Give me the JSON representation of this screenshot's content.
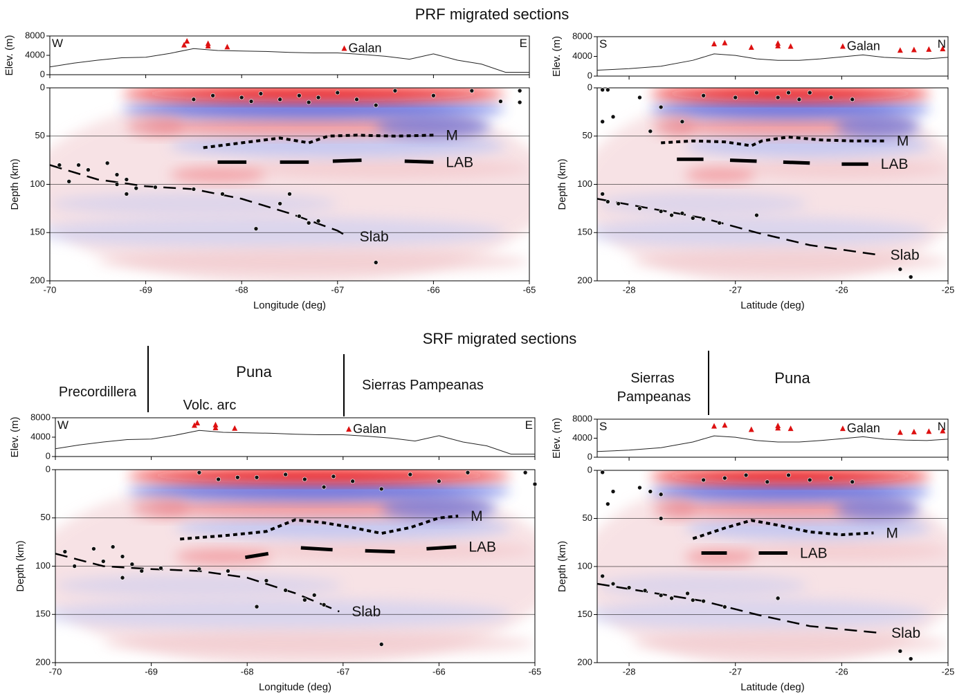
{
  "titles": [
    "PRF migrated sections",
    "SRF migrated sections"
  ],
  "regions": {
    "left": [
      "Precordillera",
      "Puna",
      "Volc. arc",
      "Sierras Pampeanas"
    ],
    "right": {
      "sierras": [
        "Sierras",
        "Pampeanas"
      ],
      "puna": "Puna"
    }
  },
  "chart_data": [
    {
      "type": "section",
      "xlabel": "Longitude (deg)",
      "xlim": [
        -70,
        -65
      ],
      "xticks": [
        -70,
        -69,
        -68,
        -67,
        -66,
        -65
      ],
      "elevation": {
        "ylabel": "Elev. (m)",
        "ylim": [
          0,
          8000
        ],
        "yticks": [
          0,
          4000,
          8000
        ],
        "ends": [
          "W",
          "E"
        ],
        "color": "#222222",
        "x": [
          -70,
          -69.75,
          -69.5,
          -69.25,
          -69,
          -68.75,
          -68.5,
          -68.25,
          -68,
          -67.75,
          -67.5,
          -67.25,
          -67,
          -66.75,
          -66.5,
          -66.25,
          -66,
          -65.75,
          -65.5,
          -65.25,
          -65
        ],
        "values": [
          1600,
          2400,
          3000,
          3500,
          3600,
          4400,
          5400,
          5000,
          4900,
          4800,
          4600,
          4500,
          4500,
          4200,
          3800,
          3200,
          4300,
          3000,
          2200,
          500,
          500
        ],
        "volcanoes": {
          "color": "#dd1111",
          "x": [
            -68.6,
            -68.57,
            -68.35,
            -68.35,
            -68.15,
            -66.93
          ],
          "values": [
            6200,
            7000,
            6500,
            6000,
            5800,
            5500
          ],
          "labels": [
            null,
            null,
            null,
            null,
            null,
            "Galan"
          ]
        }
      },
      "depth": {
        "ylabel": "Depth (km)",
        "ylim": [
          0,
          200
        ],
        "inverted": true,
        "yticks": [
          0,
          50,
          100,
          150,
          200
        ],
        "grid": true,
        "earthquakes": {
          "color": "#111111",
          "x": [
            -69.9,
            -69.7,
            -69.6,
            -69.4,
            -69.8,
            -69.3,
            -69.2,
            -69.3,
            -69.1,
            -69.2,
            -68.9,
            -68.5,
            -68.2,
            -67.6,
            -67.4,
            -67.3,
            -67.2,
            -67.85,
            -67.5,
            -66.6,
            -68.5,
            -68.3,
            -68.0,
            -67.8,
            -67.6,
            -67.4,
            -67.2,
            -67.0,
            -66.8,
            -66.6,
            -66.4,
            -66.0,
            -65.6,
            -65.1,
            -65.1,
            -65.3,
            -67.3,
            -67.9
          ],
          "values": [
            80,
            80,
            85,
            78,
            97,
            90,
            95,
            100,
            104,
            110,
            103,
            105,
            110,
            120,
            133,
            140,
            138,
            146,
            110,
            181,
            12,
            8,
            10,
            6,
            12,
            8,
            10,
            5,
            12,
            18,
            3,
            8,
            3,
            3,
            15,
            14,
            15,
            14
          ]
        },
        "series": [
          {
            "name": "M",
            "style": "dotted",
            "color": "#000000",
            "x": [
              -68.4,
              -68,
              -67.6,
              -67.3,
              -67.1,
              -66.8,
              -66.4,
              -66
            ],
            "values": [
              62,
              57,
              52,
              57,
              50,
              49,
              50,
              49
            ]
          },
          {
            "name": "LAB",
            "style": "thick",
            "color": "#000000",
            "x": [
              -68.25,
              -67.95,
              -67.8,
              -67.6,
              -67.3,
              -67.2,
              -67.05,
              -66.75,
              -66.6,
              -66.3,
              -66.0
            ],
            "values": [
              77,
              77,
              null,
              77,
              77,
              null,
              76,
              75,
              null,
              76,
              77
            ]
          },
          {
            "name": "Slab",
            "style": "dashed",
            "color": "#000000",
            "x": [
              -70,
              -69.5,
              -69,
              -68.5,
              -68,
              -67.5,
              -67,
              -66.9
            ],
            "values": [
              80,
              95,
              102,
              105,
              115,
              130,
              148,
              154
            ]
          }
        ]
      }
    },
    {
      "type": "section",
      "xlabel": "Latitude (deg)",
      "xlim": [
        -28.3,
        -25
      ],
      "xticks": [
        -28,
        -27,
        -26,
        -25
      ],
      "elevation": {
        "ylabel": "Elev. (m)",
        "ylim": [
          0,
          8000
        ],
        "yticks": [
          0,
          4000,
          8000
        ],
        "ends": [
          "S",
          "N"
        ],
        "color": "#222222",
        "x": [
          -28.3,
          -28,
          -27.7,
          -27.4,
          -27.2,
          -27,
          -26.8,
          -26.6,
          -26.4,
          -26.2,
          -26,
          -25.8,
          -25.6,
          -25.4,
          -25.2,
          -25
        ],
        "values": [
          1200,
          1500,
          2000,
          3200,
          4500,
          4200,
          3500,
          3200,
          3200,
          3500,
          3900,
          4300,
          3800,
          3600,
          3500,
          3800
        ],
        "volcanoes": {
          "color": "#dd1111",
          "x": [
            -27.2,
            -27.1,
            -26.85,
            -26.6,
            -26.6,
            -26.48,
            -25.99,
            -25.45,
            -25.32,
            -25.18,
            -25.05
          ],
          "values": [
            6600,
            6800,
            5900,
            6700,
            6200,
            6100,
            6100,
            5300,
            5400,
            5500,
            5600
          ],
          "labels": [
            null,
            null,
            null,
            null,
            null,
            null,
            "Galan",
            null,
            null,
            null,
            null
          ]
        }
      },
      "depth": {
        "ylabel": "Depth (km)",
        "ylim": [
          0,
          200
        ],
        "inverted": true,
        "yticks": [
          0,
          50,
          100,
          150,
          200
        ],
        "grid": true,
        "earthquakes": {
          "color": "#111111",
          "x": [
            -28.25,
            -28.2,
            -28.25,
            -28.15,
            -27.9,
            -27.7,
            -27.3,
            -27.0,
            -26.8,
            -26.6,
            -26.5,
            -26.4,
            -26.3,
            -26.1,
            -25.9,
            -27.5,
            -28.25,
            -28.2,
            -28.1,
            -27.9,
            -27.7,
            -27.6,
            -27.5,
            -27.4,
            -27.3,
            -27.15,
            -26.8,
            -25.45,
            -25.35,
            -27.8
          ],
          "values": [
            2,
            2,
            35,
            30,
            10,
            20,
            8,
            10,
            5,
            10,
            5,
            12,
            5,
            10,
            12,
            35,
            110,
            118,
            120,
            125,
            128,
            132,
            130,
            135,
            136,
            140,
            132,
            188,
            196,
            45
          ]
        },
        "series": [
          {
            "name": "M",
            "style": "dotted",
            "color": "#000000",
            "x": [
              -27.7,
              -27.4,
              -27.1,
              -26.85,
              -26.75,
              -26.5,
              -26.2,
              -25.9,
              -25.6
            ],
            "values": [
              57,
              55,
              56,
              60,
              55,
              51,
              54,
              55,
              55
            ]
          },
          {
            "name": "LAB",
            "style": "thick",
            "color": "#000000",
            "x": [
              -27.55,
              -27.3,
              -27.2,
              -27.05,
              -26.8,
              -26.7,
              -26.55,
              -26.3,
              -26.2,
              -26,
              -25.75
            ],
            "values": [
              74,
              74,
              null,
              75,
              76,
              null,
              77,
              78,
              null,
              79,
              79
            ]
          },
          {
            "name": "Slab",
            "style": "dashed",
            "color": "#000000",
            "x": [
              -28.3,
              -27.8,
              -27.3,
              -26.8,
              -26.3,
              -25.66
            ],
            "values": [
              115,
              125,
              135,
              150,
              163,
              173
            ]
          }
        ]
      }
    },
    {
      "type": "section",
      "xlabel": "Longitude (deg)",
      "xlim": [
        -70,
        -65
      ],
      "xticks": [
        -70,
        -69,
        -68,
        -67,
        -66,
        -65
      ],
      "elevation": {
        "ylabel": "Elev. (m)",
        "ylim": [
          0,
          8000
        ],
        "yticks": [
          0,
          4000,
          8000
        ],
        "ends": [
          "W",
          "E"
        ],
        "color": "#222222",
        "x": [
          -70,
          -69.75,
          -69.5,
          -69.25,
          -69,
          -68.75,
          -68.5,
          -68.25,
          -68,
          -67.75,
          -67.5,
          -67.25,
          -67,
          -66.75,
          -66.5,
          -66.25,
          -66,
          -65.75,
          -65.5,
          -65.25,
          -65
        ],
        "values": [
          1600,
          2400,
          3000,
          3500,
          3600,
          4400,
          5400,
          5000,
          4900,
          4800,
          4600,
          4500,
          4500,
          4200,
          3800,
          3200,
          4300,
          3000,
          2200,
          500,
          500
        ],
        "volcanoes": {
          "color": "#dd1111",
          "x": [
            -68.55,
            -68.52,
            -68.33,
            -68.33,
            -68.13,
            -66.94
          ],
          "values": [
            6500,
            7000,
            6600,
            6000,
            5900,
            5700
          ],
          "labels": [
            null,
            null,
            null,
            null,
            null,
            "Galan"
          ]
        }
      },
      "depth": {
        "ylabel": "Depth (km)",
        "ylim": [
          0,
          200
        ],
        "inverted": true,
        "yticks": [
          0,
          50,
          100,
          150,
          200
        ],
        "grid": true,
        "earthquakes": {
          "color": "#111111",
          "x": [
            -69.9,
            -69.6,
            -69.5,
            -69.3,
            -69.4,
            -69.8,
            -69.2,
            -69.1,
            -69.3,
            -68.9,
            -68.5,
            -68.2,
            -67.8,
            -67.6,
            -67.4,
            -67.2,
            -67.3,
            -67.9,
            -66.6,
            -68.5,
            -68.3,
            -67.9,
            -67.6,
            -67.4,
            -67.1,
            -66.9,
            -66.6,
            -66.3,
            -66.0,
            -65.7,
            -65.1,
            -65.0,
            -67.2,
            -68.1
          ],
          "values": [
            85,
            82,
            95,
            90,
            80,
            100,
            98,
            105,
            112,
            102,
            103,
            105,
            115,
            125,
            135,
            140,
            130,
            142,
            181,
            3,
            10,
            8,
            5,
            10,
            7,
            12,
            20,
            5,
            12,
            3,
            3,
            15,
            18,
            8
          ]
        },
        "series": [
          {
            "name": "M",
            "style": "dotted",
            "color": "#000000",
            "x": [
              -68.7,
              -68.2,
              -67.8,
              -67.5,
              -67.2,
              -66.9,
              -66.6,
              -66.3,
              -66.0,
              -65.8
            ],
            "values": [
              72,
              68,
              64,
              52,
              55,
              60,
              66,
              60,
              50,
              48
            ]
          },
          {
            "name": "LAB",
            "style": "thick",
            "color": "#000000",
            "x": [
              -68.02,
              -67.78,
              -67.6,
              -67.44,
              -67.11,
              -66.9,
              -66.77,
              -66.46,
              -66.3,
              -66.13,
              -65.82
            ],
            "values": [
              91,
              87,
              null,
              81,
              83,
              null,
              84,
              85,
              null,
              82,
              80
            ]
          },
          {
            "name": "Slab",
            "style": "dashed",
            "color": "#000000",
            "x": [
              -70,
              -69.5,
              -69,
              -68.5,
              -68,
              -67.5,
              -67.04
            ],
            "values": [
              87,
              100,
              103,
              105,
              112,
              128,
              147
            ]
          }
        ]
      }
    },
    {
      "type": "section",
      "xlabel": "Latitude (deg)",
      "xlim": [
        -28.3,
        -25
      ],
      "xticks": [
        -28,
        -27,
        -26,
        -25
      ],
      "elevation": {
        "ylabel": "Elev. (m)",
        "ylim": [
          0,
          8000
        ],
        "yticks": [
          0,
          4000,
          8000
        ],
        "ends": [
          "S",
          "N"
        ],
        "color": "#222222",
        "x": [
          -28.3,
          -28,
          -27.7,
          -27.4,
          -27.2,
          -27,
          -26.8,
          -26.6,
          -26.4,
          -26.2,
          -26,
          -25.8,
          -25.6,
          -25.4,
          -25.2,
          -25
        ],
        "values": [
          1200,
          1500,
          2000,
          3200,
          4500,
          4200,
          3500,
          3200,
          3200,
          3500,
          3900,
          4300,
          3800,
          3600,
          3500,
          3800
        ],
        "volcanoes": {
          "color": "#dd1111",
          "x": [
            -27.2,
            -27.1,
            -26.85,
            -26.6,
            -26.6,
            -26.48,
            -25.99,
            -25.45,
            -25.32,
            -25.18,
            -25.05
          ],
          "values": [
            6600,
            6800,
            5900,
            6700,
            6200,
            6100,
            6100,
            5300,
            5400,
            5500,
            5600
          ],
          "labels": [
            null,
            null,
            null,
            null,
            null,
            null,
            "Galan",
            null,
            null,
            null,
            null
          ]
        }
      },
      "depth": {
        "ylabel": "Depth (km)",
        "ylim": [
          0,
          200
        ],
        "inverted": true,
        "yticks": [
          0,
          50,
          100,
          150,
          200
        ],
        "grid": true,
        "earthquakes": {
          "color": "#111111",
          "x": [
            -28.25,
            -28.15,
            -28.2,
            -27.9,
            -27.8,
            -27.7,
            -27.3,
            -27.1,
            -26.9,
            -26.7,
            -26.5,
            -26.3,
            -26.1,
            -25.9,
            -27.7,
            -28.25,
            -28.15,
            -28.0,
            -27.85,
            -27.7,
            -27.6,
            -27.45,
            -27.4,
            -27.3,
            -27.1,
            -26.6,
            -25.45,
            -25.35
          ],
          "values": [
            2,
            22,
            35,
            18,
            22,
            25,
            10,
            8,
            5,
            12,
            5,
            10,
            8,
            12,
            50,
            110,
            118,
            122,
            125,
            130,
            133,
            128,
            135,
            136,
            142,
            133,
            188,
            196
          ]
        },
        "series": [
          {
            "name": "M",
            "style": "dotted",
            "color": "#000000",
            "x": [
              -27.4,
              -27.1,
              -26.85,
              -26.6,
              -26.3,
              -26.0,
              -25.7
            ],
            "values": [
              71,
              60,
              52,
              57,
              64,
              67,
              65
            ]
          },
          {
            "name": "LAB",
            "style": "thick",
            "color": "#000000",
            "x": [
              -27.32,
              -27.08,
              -26.9,
              -26.78,
              -26.51
            ],
            "values": [
              86,
              86,
              null,
              86,
              86
            ]
          },
          {
            "name": "Slab",
            "style": "dashed",
            "color": "#000000",
            "x": [
              -28.3,
              -27.8,
              -27.3,
              -26.8,
              -26.3,
              -25.65
            ],
            "values": [
              118,
              127,
              136,
              150,
              162,
              169
            ]
          }
        ]
      }
    }
  ]
}
